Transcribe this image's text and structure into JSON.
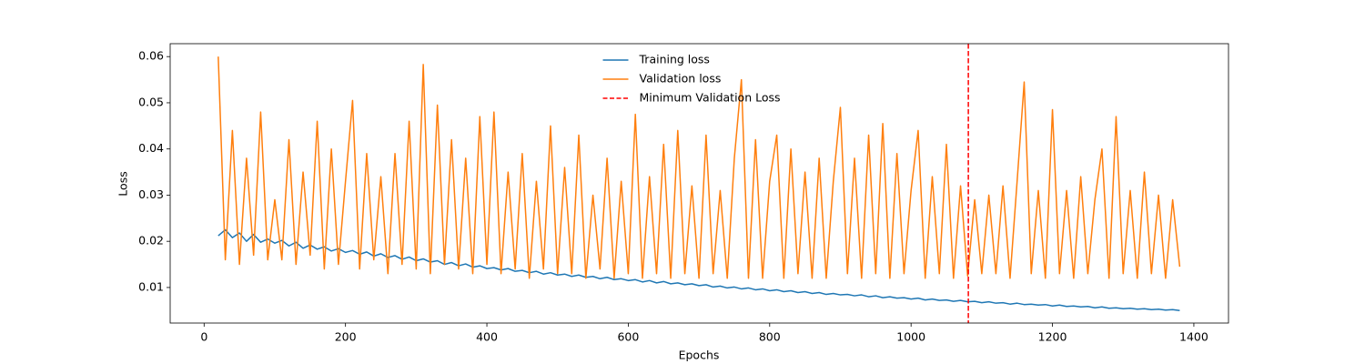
{
  "chart_data": {
    "type": "line",
    "xlabel": "Epochs",
    "ylabel": "Loss",
    "xlim": [
      -48,
      1449
    ],
    "ylim": [
      0.0023,
      0.0628
    ],
    "xticks": [
      0,
      200,
      400,
      600,
      800,
      1000,
      1200,
      1400
    ],
    "yticks": [
      0.01,
      0.02,
      0.03,
      0.04,
      0.05,
      0.06
    ],
    "legend": "upper center",
    "x": [
      20,
      30,
      40,
      50,
      60,
      70,
      80,
      90,
      100,
      110,
      120,
      130,
      140,
      150,
      160,
      170,
      180,
      190,
      200,
      210,
      220,
      230,
      240,
      250,
      260,
      270,
      280,
      290,
      300,
      310,
      320,
      330,
      340,
      350,
      360,
      370,
      380,
      390,
      400,
      410,
      420,
      430,
      440,
      450,
      460,
      470,
      480,
      490,
      500,
      510,
      520,
      530,
      540,
      550,
      560,
      570,
      580,
      590,
      600,
      610,
      620,
      630,
      640,
      650,
      660,
      670,
      680,
      690,
      700,
      710,
      720,
      730,
      740,
      750,
      760,
      770,
      780,
      790,
      800,
      810,
      820,
      830,
      840,
      850,
      860,
      870,
      880,
      890,
      900,
      910,
      920,
      930,
      940,
      950,
      960,
      970,
      980,
      990,
      1000,
      1010,
      1020,
      1030,
      1040,
      1050,
      1060,
      1070,
      1080,
      1090,
      1100,
      1110,
      1120,
      1130,
      1140,
      1150,
      1160,
      1170,
      1180,
      1190,
      1200,
      1210,
      1220,
      1230,
      1240,
      1250,
      1260,
      1270,
      1280,
      1290,
      1300,
      1310,
      1320,
      1330,
      1340,
      1350,
      1360,
      1370,
      1380
    ],
    "series": [
      {
        "name": "Training loss",
        "color": "#1f77b4",
        "values": [
          0.0212,
          0.0225,
          0.0208,
          0.0218,
          0.02,
          0.0215,
          0.0198,
          0.0205,
          0.0196,
          0.0202,
          0.019,
          0.0198,
          0.0185,
          0.0192,
          0.0183,
          0.0188,
          0.0179,
          0.0184,
          0.0176,
          0.018,
          0.0172,
          0.0177,
          0.0168,
          0.0173,
          0.0165,
          0.0169,
          0.0161,
          0.0166,
          0.0158,
          0.0162,
          0.0155,
          0.0158,
          0.015,
          0.0154,
          0.0147,
          0.0151,
          0.0144,
          0.0147,
          0.0141,
          0.0143,
          0.0138,
          0.0141,
          0.0135,
          0.0137,
          0.0132,
          0.0135,
          0.0129,
          0.0132,
          0.0127,
          0.0129,
          0.0124,
          0.0127,
          0.0122,
          0.0124,
          0.0119,
          0.0122,
          0.0117,
          0.0119,
          0.0115,
          0.0117,
          0.0112,
          0.0115,
          0.011,
          0.0113,
          0.0108,
          0.011,
          0.0106,
          0.0108,
          0.0104,
          0.0106,
          0.0101,
          0.0103,
          0.0099,
          0.0101,
          0.0097,
          0.0099,
          0.0095,
          0.0097,
          0.0093,
          0.0095,
          0.0091,
          0.0093,
          0.0089,
          0.0091,
          0.0087,
          0.0089,
          0.0085,
          0.0087,
          0.0084,
          0.0085,
          0.0082,
          0.0084,
          0.008,
          0.0082,
          0.0078,
          0.008,
          0.0077,
          0.0078,
          0.0075,
          0.0077,
          0.0073,
          0.0075,
          0.0072,
          0.0073,
          0.007,
          0.0072,
          0.0069,
          0.007,
          0.0067,
          0.0069,
          0.0066,
          0.0067,
          0.0064,
          0.0066,
          0.0063,
          0.0064,
          0.0062,
          0.0063,
          0.006,
          0.0062,
          0.0059,
          0.006,
          0.0058,
          0.0059,
          0.0056,
          0.0058,
          0.0055,
          0.0056,
          0.0054,
          0.0055,
          0.0053,
          0.0054,
          0.0052,
          0.0053,
          0.0051,
          0.0052,
          0.005
        ]
      },
      {
        "name": "Validation loss",
        "color": "#ff7f0e",
        "values": [
          0.06,
          0.016,
          0.044,
          0.015,
          0.038,
          0.017,
          0.048,
          0.016,
          0.029,
          0.016,
          0.042,
          0.015,
          0.035,
          0.017,
          0.046,
          0.014,
          0.04,
          0.015,
          0.033,
          0.0505,
          0.014,
          0.039,
          0.016,
          0.034,
          0.013,
          0.039,
          0.015,
          0.046,
          0.014,
          0.0583,
          0.013,
          0.0495,
          0.015,
          0.042,
          0.014,
          0.038,
          0.013,
          0.047,
          0.015,
          0.048,
          0.013,
          0.035,
          0.014,
          0.039,
          0.012,
          0.033,
          0.014,
          0.045,
          0.013,
          0.036,
          0.013,
          0.043,
          0.012,
          0.03,
          0.014,
          0.038,
          0.012,
          0.033,
          0.013,
          0.0475,
          0.012,
          0.034,
          0.013,
          0.041,
          0.012,
          0.044,
          0.013,
          0.032,
          0.012,
          0.043,
          0.013,
          0.031,
          0.012,
          0.038,
          0.055,
          0.012,
          0.042,
          0.012,
          0.033,
          0.043,
          0.012,
          0.04,
          0.013,
          0.035,
          0.012,
          0.038,
          0.012,
          0.033,
          0.049,
          0.013,
          0.038,
          0.012,
          0.043,
          0.013,
          0.0455,
          0.012,
          0.039,
          0.013,
          0.031,
          0.044,
          0.012,
          0.034,
          0.013,
          0.041,
          0.012,
          0.032,
          0.0125,
          0.029,
          0.013,
          0.03,
          0.013,
          0.032,
          0.012,
          0.033,
          0.0545,
          0.013,
          0.031,
          0.012,
          0.0485,
          0.013,
          0.031,
          0.012,
          0.034,
          0.013,
          0.029,
          0.04,
          0.012,
          0.047,
          0.013,
          0.031,
          0.012,
          0.035,
          0.013,
          0.03,
          0.012,
          0.029,
          0.0145
        ]
      }
    ],
    "vline": {
      "name": "Minimum Validation Loss",
      "color": "#ff0000",
      "x": 1081
    }
  }
}
